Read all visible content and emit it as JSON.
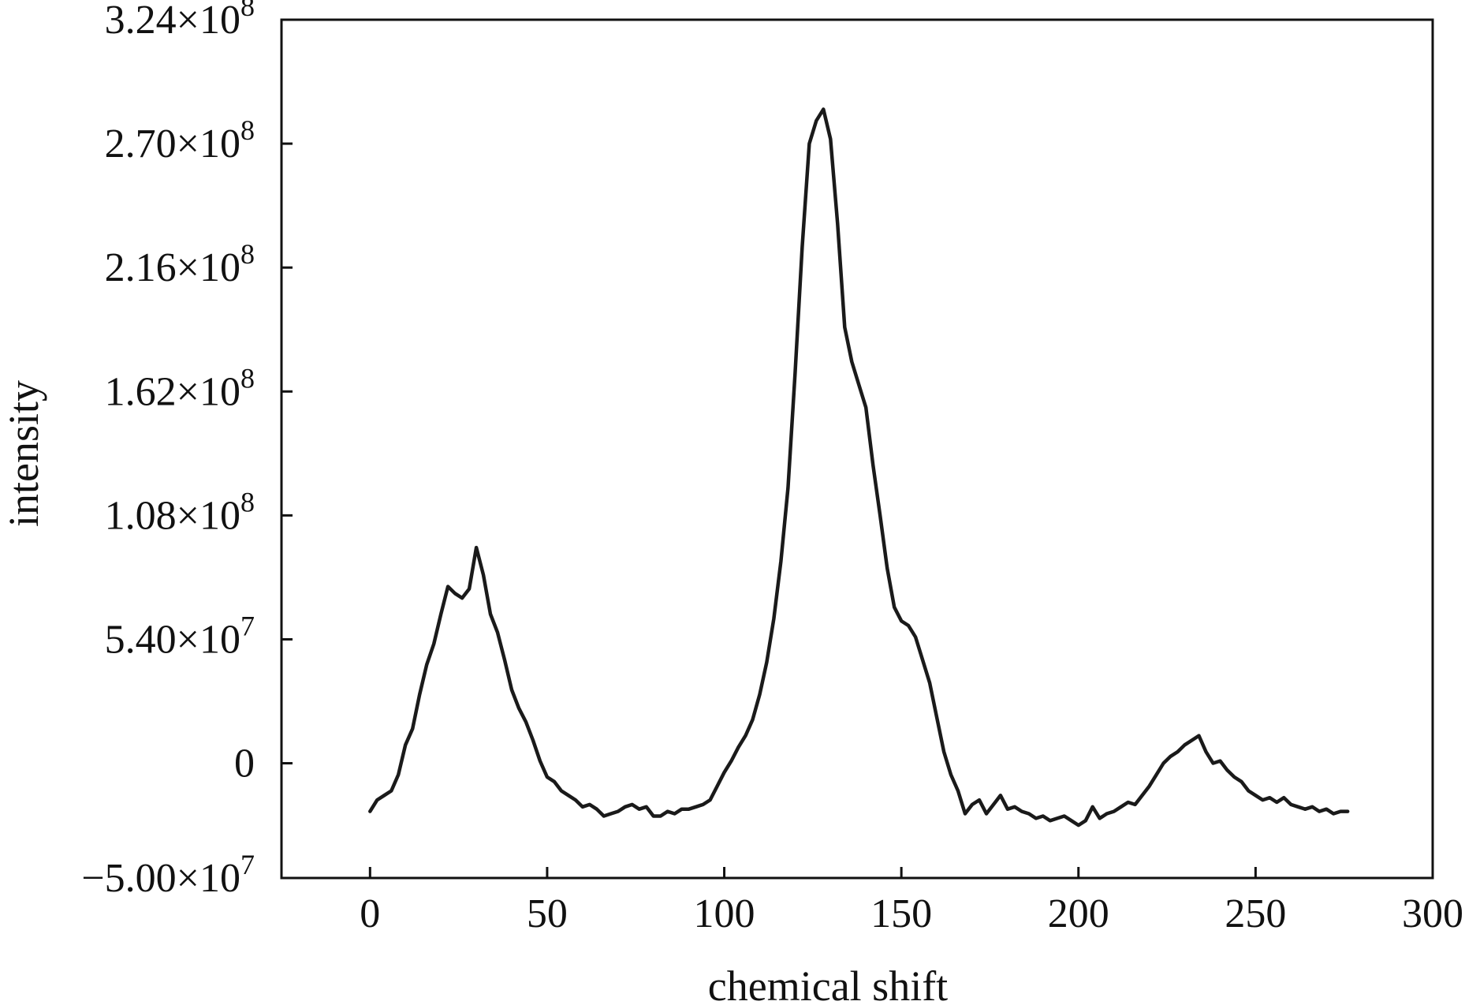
{
  "chart_data": {
    "type": "line",
    "title": "",
    "xlabel": "chemical shift",
    "ylabel": "intensity",
    "xlim": [
      -25,
      300
    ],
    "ylim": [
      -50000000,
      324000000
    ],
    "x_ticks": [
      0,
      50,
      100,
      150,
      200,
      250,
      300
    ],
    "x_tick_labels": [
      "0",
      "50",
      "100",
      "150",
      "200",
      "250",
      "300"
    ],
    "y_ticks": [
      -50000000,
      0,
      54000000,
      108000000,
      162000000,
      216000000,
      270000000,
      324000000
    ],
    "y_tick_labels": [
      {
        "mantissa": "−5.00",
        "exp": "7"
      },
      {
        "mantissa": "0",
        "exp": ""
      },
      {
        "mantissa": "5.40",
        "exp": "7"
      },
      {
        "mantissa": "1.08",
        "exp": "8"
      },
      {
        "mantissa": "1.62",
        "exp": "8"
      },
      {
        "mantissa": "2.16",
        "exp": "8"
      },
      {
        "mantissa": "2.70",
        "exp": "8"
      },
      {
        "mantissa": "3.24",
        "exp": "8"
      }
    ],
    "grid": false,
    "legend": "none",
    "line_color": "#1a1a1a",
    "series": [
      {
        "x": [
          0,
          2,
          4,
          6,
          8,
          10,
          12,
          14,
          16,
          18,
          20,
          22,
          24,
          26,
          28,
          30,
          32,
          34,
          36,
          38,
          40,
          42,
          44,
          46,
          48,
          50,
          52,
          54,
          56,
          58,
          60,
          62,
          64,
          66,
          68,
          70,
          72,
          74,
          76,
          78,
          80,
          82,
          84,
          86,
          88,
          90,
          92,
          94,
          96,
          98,
          100,
          102,
          104,
          106,
          108,
          110,
          112,
          114,
          116,
          118,
          120,
          122,
          124,
          126,
          128,
          130,
          132,
          134,
          136,
          138,
          140,
          142,
          144,
          146,
          148,
          150,
          152,
          154,
          156,
          158,
          160,
          162,
          164,
          166,
          168,
          170,
          172,
          174,
          176,
          178,
          180,
          182,
          184,
          186,
          188,
          190,
          192,
          194,
          196,
          198,
          200,
          202,
          204,
          206,
          208,
          210,
          212,
          214,
          216,
          218,
          220,
          222,
          224,
          226,
          228,
          230,
          232,
          234,
          236,
          238,
          240,
          242,
          244,
          246,
          248,
          250,
          252,
          254,
          256,
          258,
          260,
          262,
          264,
          266,
          268,
          270,
          272,
          274,
          276
        ],
        "y": [
          -21000000,
          -16000000,
          -14000000,
          -12000000,
          -5000000,
          8000000,
          15000000,
          30000000,
          43000000,
          52000000,
          65000000,
          77000000,
          74000000,
          72000000,
          76000000,
          94000000,
          82000000,
          65000000,
          57000000,
          45000000,
          32000000,
          24000000,
          18000000,
          10000000,
          1000000,
          -6000000,
          -8000000,
          -12000000,
          -14000000,
          -16000000,
          -19000000,
          -18000000,
          -20000000,
          -23000000,
          -22000000,
          -21000000,
          -19000000,
          -18000000,
          -20000000,
          -19000000,
          -23000000,
          -23000000,
          -21000000,
          -22000000,
          -20000000,
          -20000000,
          -19000000,
          -18000000,
          -16000000,
          -10000000,
          -4000000,
          1000000,
          7000000,
          12000000,
          19000000,
          30000000,
          44000000,
          63000000,
          88000000,
          120000000,
          170000000,
          225000000,
          270000000,
          280000000,
          285000000,
          272000000,
          235000000,
          190000000,
          175000000,
          165000000,
          155000000,
          130000000,
          108000000,
          85000000,
          68000000,
          62000000,
          60000000,
          55000000,
          45000000,
          35000000,
          20000000,
          5000000,
          -5000000,
          -12000000,
          -22000000,
          -18000000,
          -16000000,
          -22000000,
          -18000000,
          -14000000,
          -20000000,
          -19000000,
          -21000000,
          -22000000,
          -24000000,
          -23000000,
          -25000000,
          -24000000,
          -23000000,
          -25000000,
          -27000000,
          -25000000,
          -19000000,
          -24000000,
          -22000000,
          -21000000,
          -19000000,
          -17000000,
          -18000000,
          -14000000,
          -10000000,
          -5000000,
          0,
          3000000,
          5000000,
          8000000,
          10000000,
          12000000,
          5000000,
          0,
          1000000,
          -3000000,
          -6000000,
          -8000000,
          -12000000,
          -14000000,
          -16000000,
          -15000000,
          -17000000,
          -15000000,
          -18000000,
          -19000000,
          -20000000,
          -19000000,
          -21000000,
          -20000000,
          -22000000,
          -21000000,
          -21000000
        ]
      }
    ]
  }
}
